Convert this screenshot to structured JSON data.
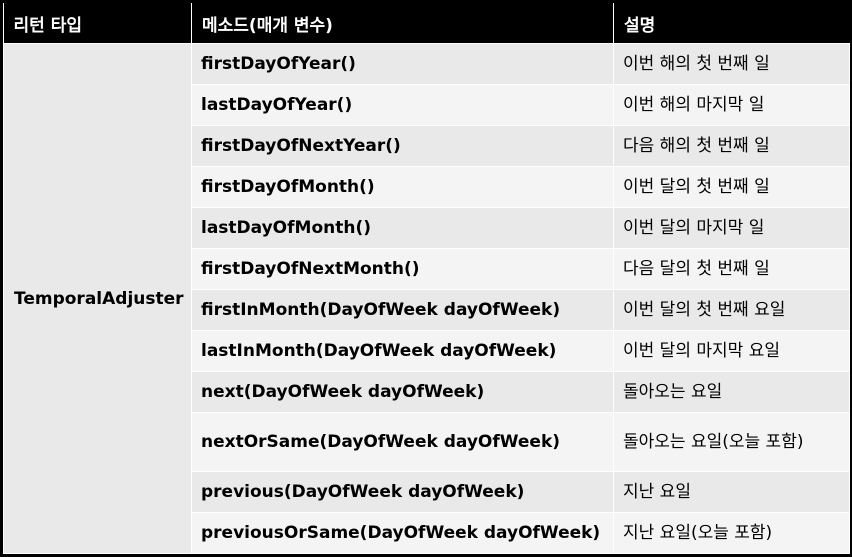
{
  "header": {
    "return_type": "리턴 타입",
    "method": "메소드(매개 변수)",
    "description": "설명"
  },
  "return_type_value": "TemporalAdjuster",
  "rows": [
    {
      "method": "firstDayOfYear()",
      "description": "이번 해의 첫 번째 일"
    },
    {
      "method": "lastDayOfYear()",
      "description": "이번 해의 마지막 일"
    },
    {
      "method": "firstDayOfNextYear()",
      "description": "다음 해의 첫 번째 일"
    },
    {
      "method": "firstDayOfMonth()",
      "description": "이번 달의 첫 번째 일"
    },
    {
      "method": "lastDayOfMonth()",
      "description": "이번 달의 마지막 일"
    },
    {
      "method": "firstDayOfNextMonth()",
      "description": "다음 달의 첫 번째 일"
    },
    {
      "method": "firstInMonth(DayOfWeek dayOfWeek)",
      "description": "이번 달의 첫 번째 요일"
    },
    {
      "method": "lastInMonth(DayOfWeek dayOfWeek)",
      "description": "이번 달의 마지막 요일"
    },
    {
      "method": "next(DayOfWeek dayOfWeek)",
      "description": "돌아오는 요일"
    },
    {
      "method": "nextOrSame(DayOfWeek dayOfWeek)",
      "description": "돌아오는 요일(오늘 포함)"
    },
    {
      "method": "previous(DayOfWeek dayOfWeek)",
      "description": "지난 요일"
    },
    {
      "method": "previousOrSame(DayOfWeek dayOfWeek)",
      "description": "지난 요일(오늘 포함)"
    }
  ],
  "colors": {
    "header_bg": "#000000",
    "header_text": "#ffffff",
    "row_dark": "#e9e9e9",
    "row_light": "#f4f4f4",
    "border": "#ffffff"
  }
}
